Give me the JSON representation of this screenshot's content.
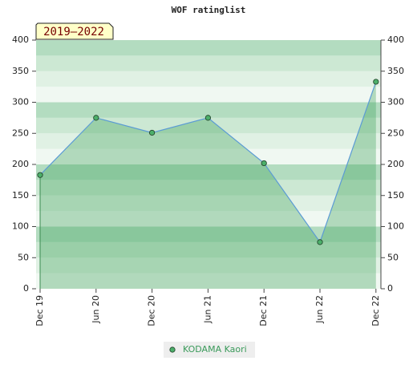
{
  "chart_data": {
    "type": "line",
    "title": "WOF ratinglist",
    "annotation": "2019–2022",
    "categories": [
      "Dec 19",
      "Jun 20",
      "Dec 20",
      "Jun 21",
      "Dec 21",
      "Jun 22",
      "Dec 22"
    ],
    "series": [
      {
        "name": "KODAMA Kaori",
        "color": "#5b9bd5",
        "marker_color": "#4caf6a",
        "values": [
          183,
          275,
          251,
          275,
          202,
          75,
          333
        ]
      }
    ],
    "ylim": [
      0,
      400
    ],
    "yticks": [
      0,
      50,
      100,
      150,
      200,
      250,
      300,
      350,
      400
    ],
    "y2lim": [
      0,
      400
    ],
    "y2ticks": [
      0,
      50,
      100,
      150,
      200,
      250,
      300,
      350,
      400
    ],
    "legend": "bottom"
  }
}
